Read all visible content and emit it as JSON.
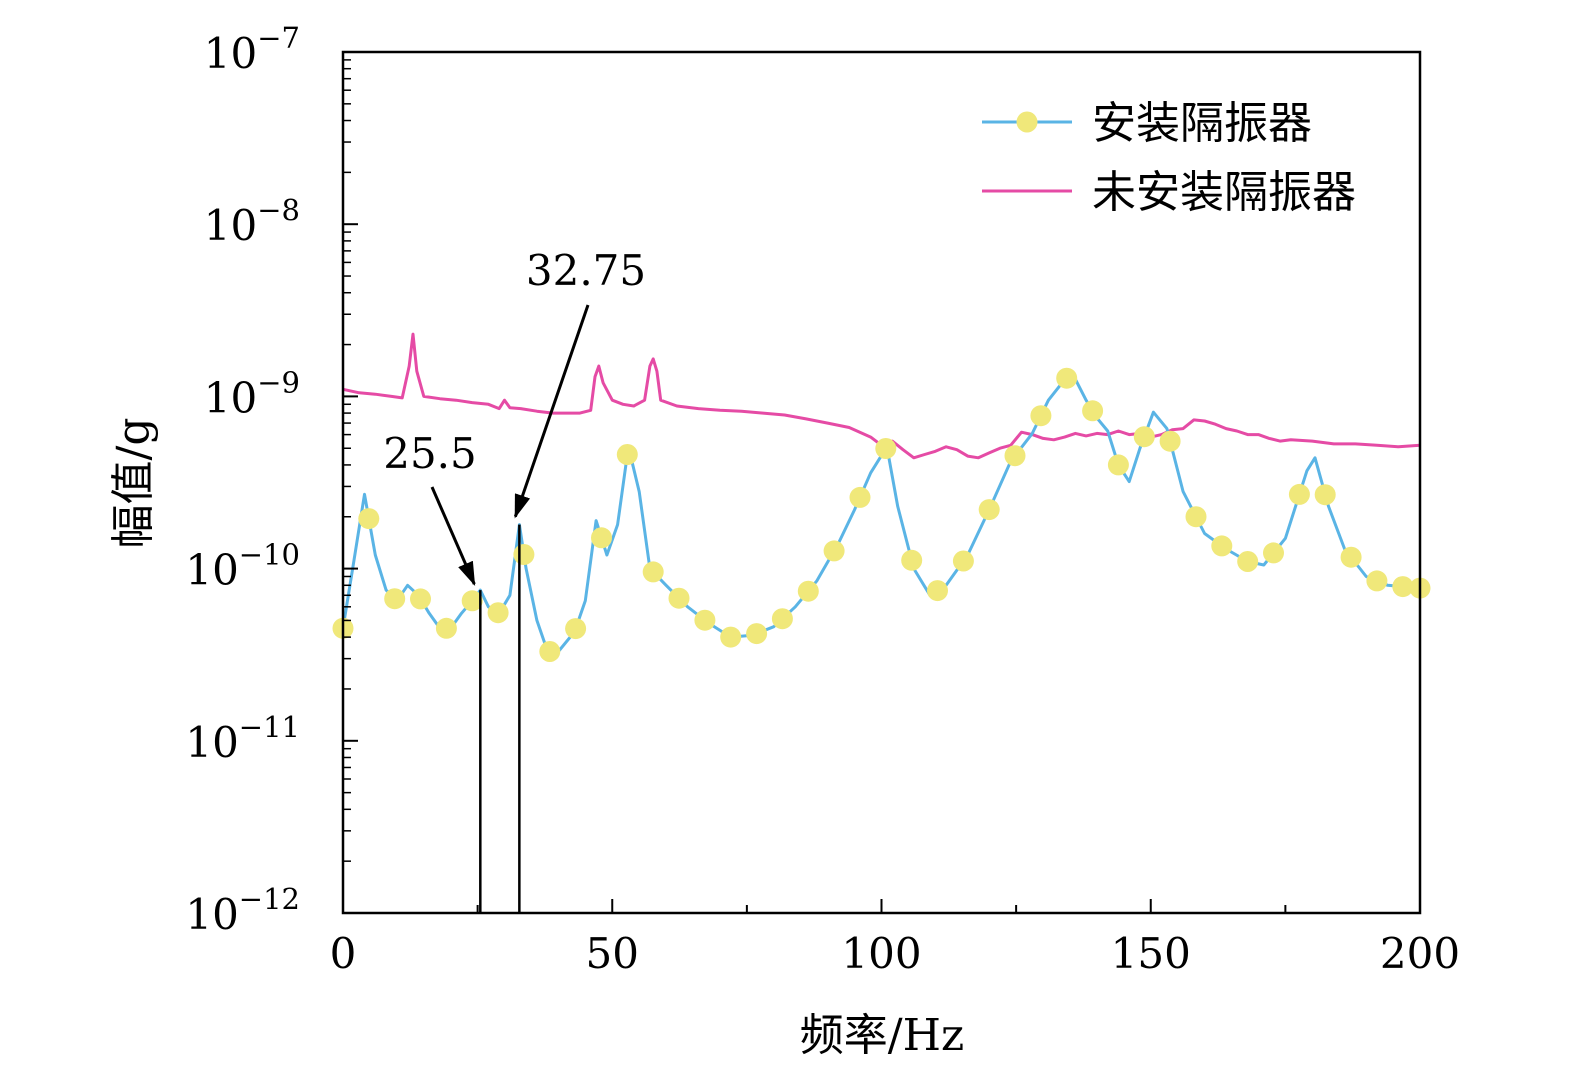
{
  "chart_data": {
    "type": "line",
    "xlabel": "频率/Hz",
    "ylabel": "幅值/g",
    "xlim": [
      0,
      200
    ],
    "xticks": [
      0,
      50,
      100,
      150,
      200
    ],
    "xtick_labels": [
      "0",
      "50",
      "100",
      "150",
      "200"
    ],
    "yscale": "log",
    "ylim": [
      1e-12,
      1e-07
    ],
    "yticks": [
      {
        "value": 1e-07,
        "base": "10",
        "exp": "−7"
      },
      {
        "value": 1e-08,
        "base": "10",
        "exp": "−8"
      },
      {
        "value": 1e-09,
        "base": "10",
        "exp": "−9"
      },
      {
        "value": 1e-10,
        "base": "10",
        "exp": "−10"
      },
      {
        "value": 1e-11,
        "base": "10",
        "exp": "−11"
      },
      {
        "value": 1e-12,
        "base": "10",
        "exp": "−12"
      }
    ],
    "grid": false,
    "legend_position": "top-right",
    "series": [
      {
        "name": "安装隔振器",
        "color": "#5ab4e5",
        "marker_color": "#f0e87a",
        "x": [
          0,
          2,
          4,
          6,
          8,
          10,
          12,
          14,
          16,
          18,
          20,
          22,
          24,
          25.5,
          27,
          29,
          31,
          32.75,
          34,
          36,
          38,
          40,
          43,
          45,
          47,
          49,
          51,
          53,
          55,
          57,
          60,
          64,
          68,
          72,
          76,
          80,
          84,
          88,
          92,
          95,
          98,
          101,
          103,
          106,
          109,
          112,
          116,
          120,
          124,
          128,
          131,
          134,
          135.5,
          138,
          140,
          142,
          144,
          146,
          148,
          150.5,
          153,
          156,
          160,
          164,
          168,
          171,
          175,
          179,
          180.5,
          183,
          186,
          190,
          194,
          200
        ],
        "y": [
          4.5e-11,
          1.1e-10,
          2.7e-10,
          1.2e-10,
          7.5e-11,
          6.5e-11,
          8e-11,
          7e-11,
          5.5e-11,
          4.5e-11,
          4.5e-11,
          5.5e-11,
          6.5e-11,
          7.5e-11,
          6e-11,
          5.5e-11,
          7e-11,
          1.8e-10,
          1e-10,
          5e-11,
          3.3e-11,
          3.3e-11,
          4.3e-11,
          6.5e-11,
          1.9e-10,
          1.2e-10,
          1.8e-10,
          5.1e-10,
          2.8e-10,
          1e-10,
          8e-11,
          6e-11,
          4.8e-11,
          4e-11,
          4.1e-11,
          4.6e-11,
          6e-11,
          8.5e-11,
          1.4e-10,
          2.2e-10,
          3.6e-10,
          5.1e-10,
          2.3e-10,
          1e-10,
          7e-11,
          8e-11,
          1.2e-10,
          2.2e-10,
          4.2e-10,
          6.1e-10,
          9.5e-10,
          1.25e-09,
          1.35e-09,
          9.5e-10,
          7.5e-10,
          6.3e-10,
          4e-10,
          3.2e-10,
          5e-10,
          8.1e-10,
          6.5e-10,
          2.8e-10,
          1.6e-10,
          1.3e-10,
          1.1e-10,
          1.05e-10,
          1.5e-10,
          3.7e-10,
          4.4e-10,
          2.3e-10,
          1.3e-10,
          9e-11,
          8e-11,
          7.7e-11
        ],
        "markers_x": [
          0,
          4.8,
          9.6,
          14.4,
          19.2,
          24,
          28.8,
          33.6,
          38.4,
          43.2,
          48,
          52.8,
          57.6,
          62.4,
          67.2,
          72,
          76.8,
          81.6,
          86.4,
          91.2,
          96,
          100.8,
          105.6,
          110.4,
          115.2,
          120,
          124.8,
          129.6,
          134.4,
          139.2,
          144,
          148.8,
          153.6,
          158.4,
          163.2,
          168,
          172.8,
          177.6,
          182.4,
          187.2,
          192,
          196.8,
          200
        ]
      },
      {
        "name": "未安装隔振器",
        "color": "#e54ba5",
        "x": [
          0,
          3,
          6,
          9,
          11,
          12.3,
          13,
          13.7,
          15,
          18,
          21,
          24,
          27,
          29,
          30,
          31,
          33,
          36,
          39,
          42,
          44,
          46,
          46.8,
          47.5,
          48.3,
          50,
          52,
          54,
          56,
          57,
          57.6,
          58.3,
          59,
          62,
          66,
          70,
          74,
          78,
          82,
          86,
          90,
          94,
          98,
          100,
          102,
          104,
          106,
          108,
          110,
          112,
          114,
          116,
          118,
          120,
          122,
          124,
          126,
          128,
          130,
          132,
          134,
          136,
          138,
          140,
          142,
          144,
          146,
          148,
          150,
          152,
          154,
          156,
          158,
          160,
          162,
          164,
          166,
          168,
          170,
          172,
          174,
          176,
          180,
          184,
          188,
          192,
          196,
          200
        ],
        "y": [
          1.1e-09,
          1.05e-09,
          1.03e-09,
          1e-09,
          9.8e-10,
          1.5e-09,
          2.3e-09,
          1.4e-09,
          1e-09,
          9.7e-10,
          9.5e-10,
          9.2e-10,
          9e-10,
          8.5e-10,
          9.5e-10,
          8.6e-10,
          8.5e-10,
          8.2e-10,
          8e-10,
          8e-10,
          8e-10,
          8.3e-10,
          1.3e-09,
          1.5e-09,
          1.2e-09,
          9.5e-10,
          9e-10,
          8.8e-10,
          9.5e-10,
          1.5e-09,
          1.65e-09,
          1.4e-09,
          9.5e-10,
          8.8e-10,
          8.5e-10,
          8.3e-10,
          8.2e-10,
          8e-10,
          7.8e-10,
          7.4e-10,
          7e-10,
          6.6e-10,
          5.8e-10,
          5.2e-10,
          5.5e-10,
          4.9e-10,
          4.4e-10,
          4.6e-10,
          4.8e-10,
          5.1e-10,
          4.9e-10,
          4.5e-10,
          4.4e-10,
          4.7e-10,
          5e-10,
          5.2e-10,
          6.2e-10,
          6e-10,
          5.7e-10,
          5.6e-10,
          5.8e-10,
          6.1e-10,
          5.9e-10,
          6.1e-10,
          6e-10,
          6.3e-10,
          6e-10,
          6.1e-10,
          5.8e-10,
          6e-10,
          6.4e-10,
          6.5e-10,
          7.3e-10,
          7.2e-10,
          6.9e-10,
          6.5e-10,
          6.3e-10,
          6e-10,
          6e-10,
          5.7e-10,
          5.5e-10,
          5.6e-10,
          5.5e-10,
          5.3e-10,
          5.3e-10,
          5.2e-10,
          5.1e-10,
          5.2e-10
        ]
      }
    ],
    "annotations": [
      {
        "label": "25.5",
        "x": 25.5,
        "y_top": 7.5e-11
      },
      {
        "label": "32.75",
        "x": 32.75,
        "y_top": 1.8e-10
      }
    ]
  }
}
